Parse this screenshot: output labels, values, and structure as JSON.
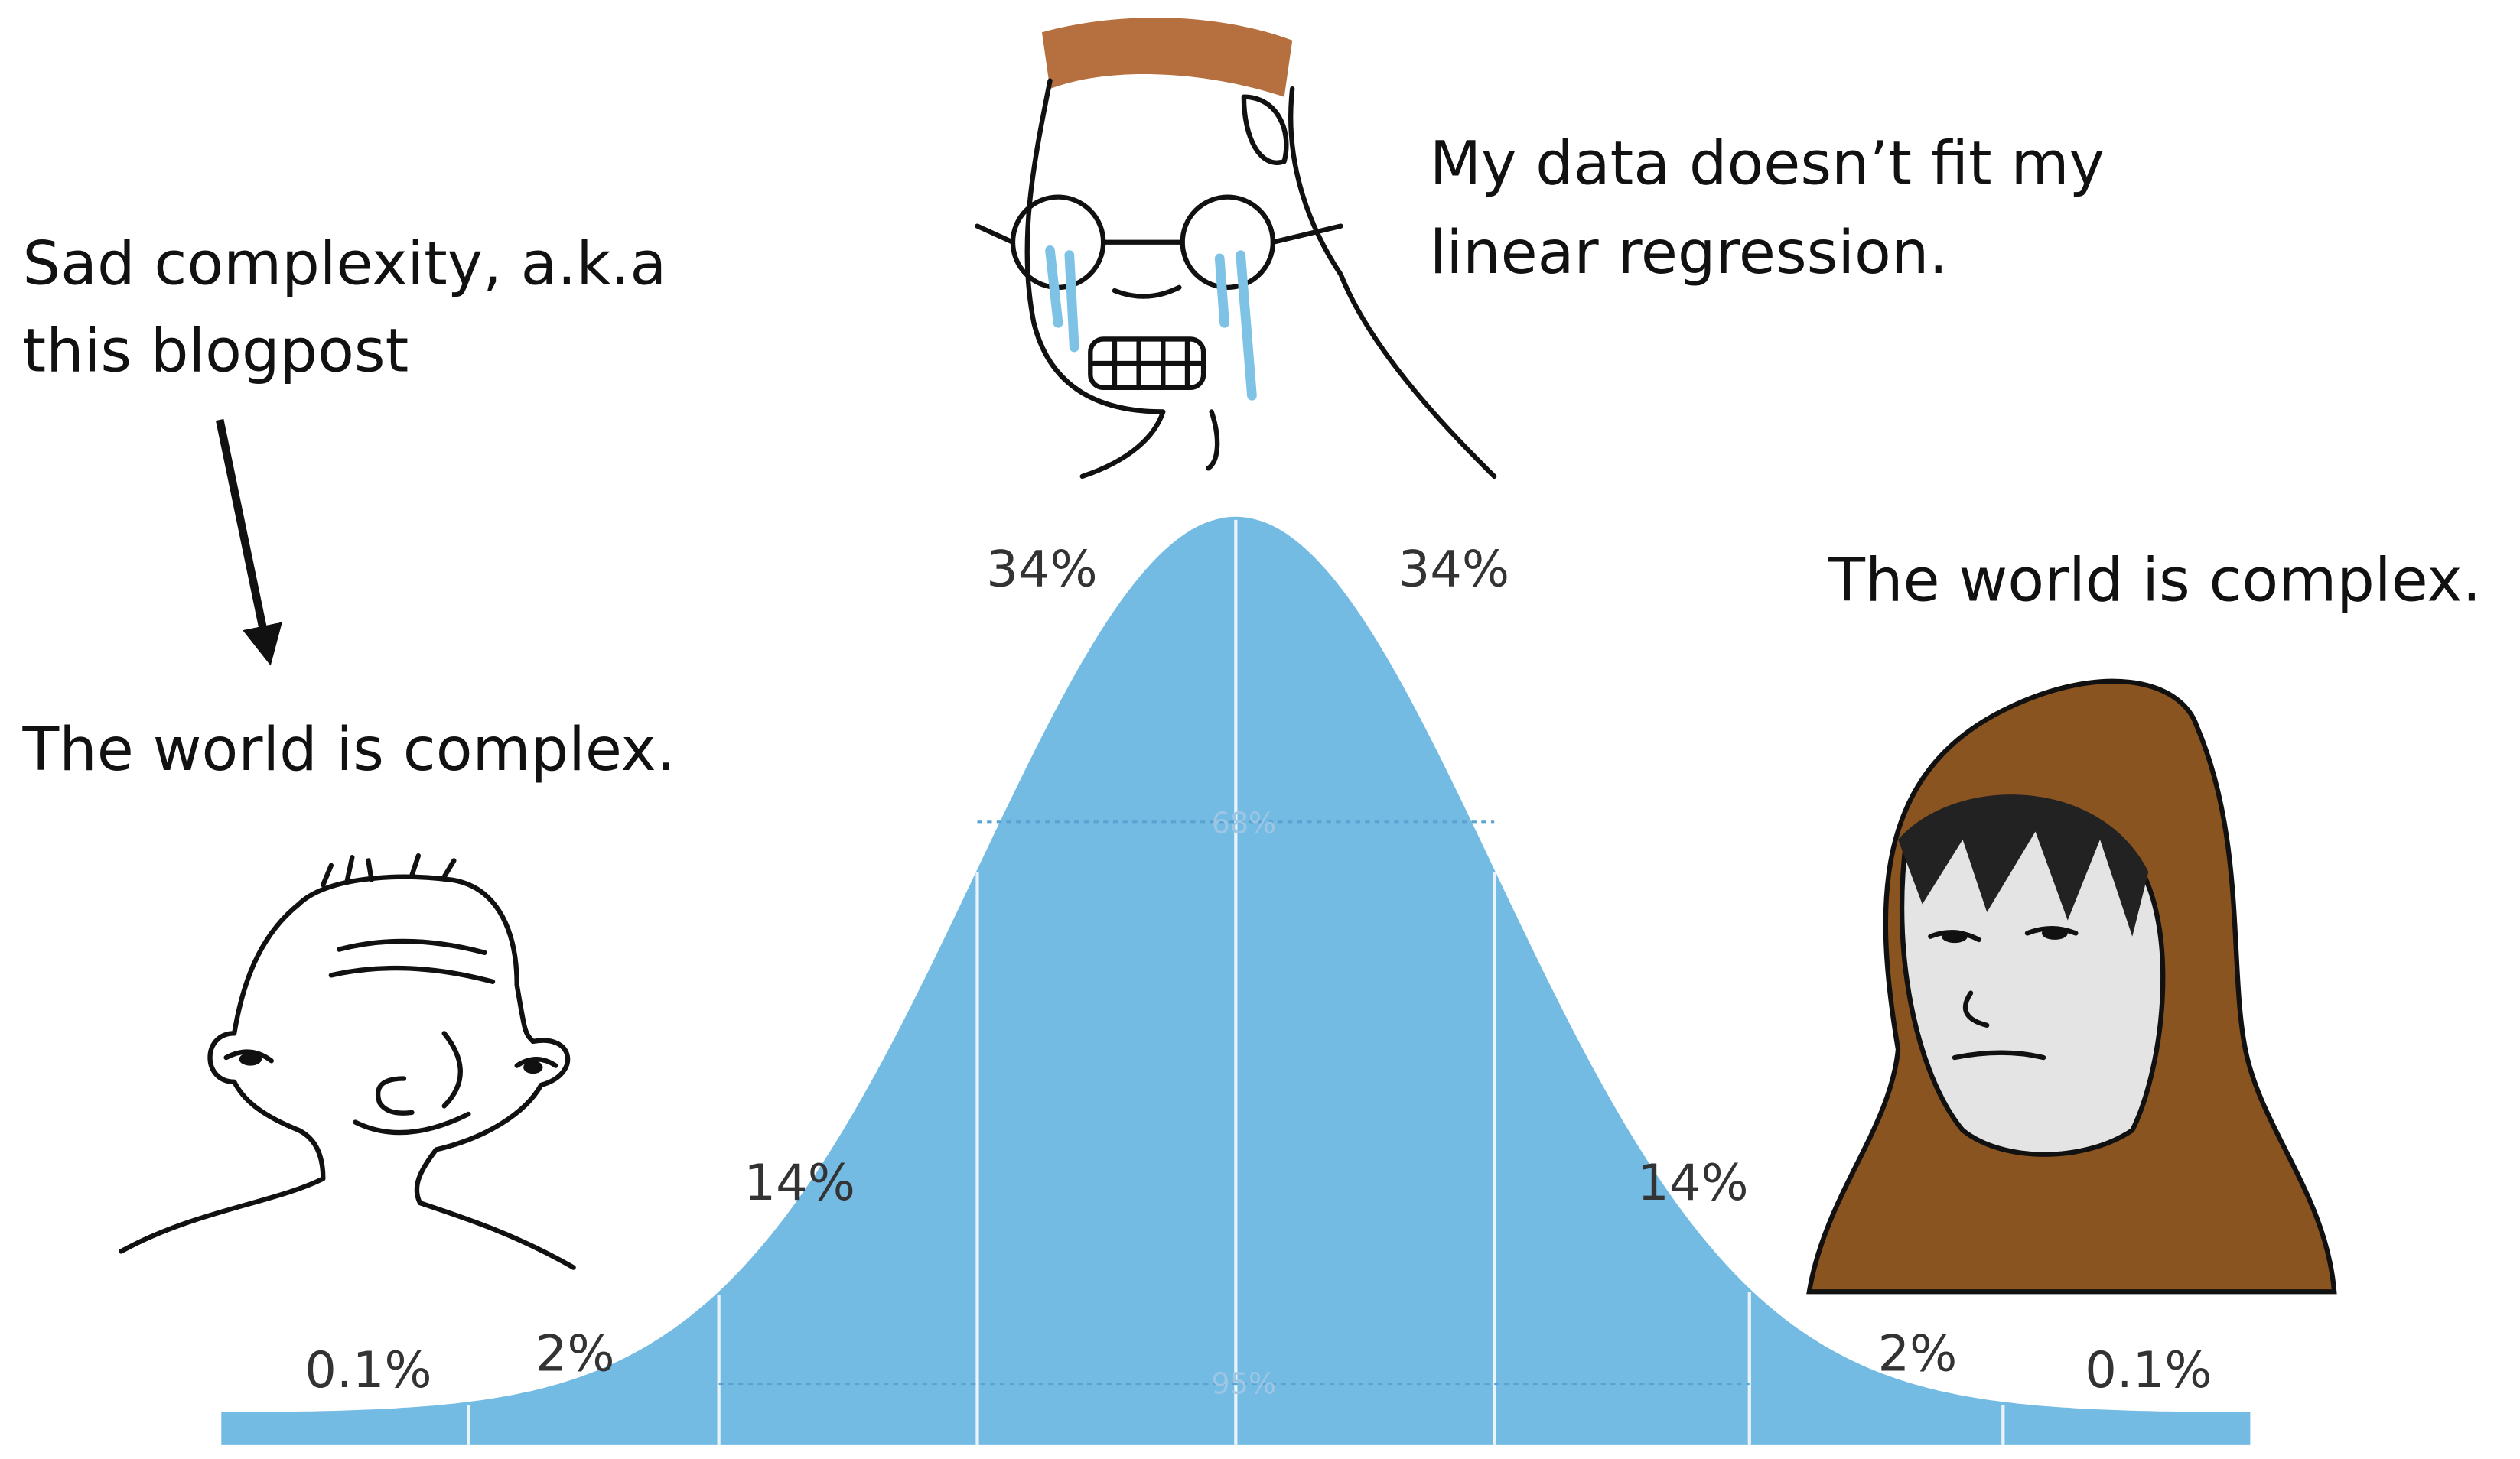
{
  "annotations": {
    "left_top": [
      "Sad complexity, a.k.a",
      "this blogpost"
    ],
    "left": "The world is complex.",
    "center": [
      "My data doesn’t fit my",
      "linear regression."
    ],
    "right": "The world is complex."
  },
  "curve": {
    "segment_labels": [
      "0.1%",
      "2%",
      "14%",
      "34%",
      "34%",
      "14%",
      "2%",
      "0.1%"
    ],
    "range_labels": [
      "68%",
      "95%"
    ]
  }
}
